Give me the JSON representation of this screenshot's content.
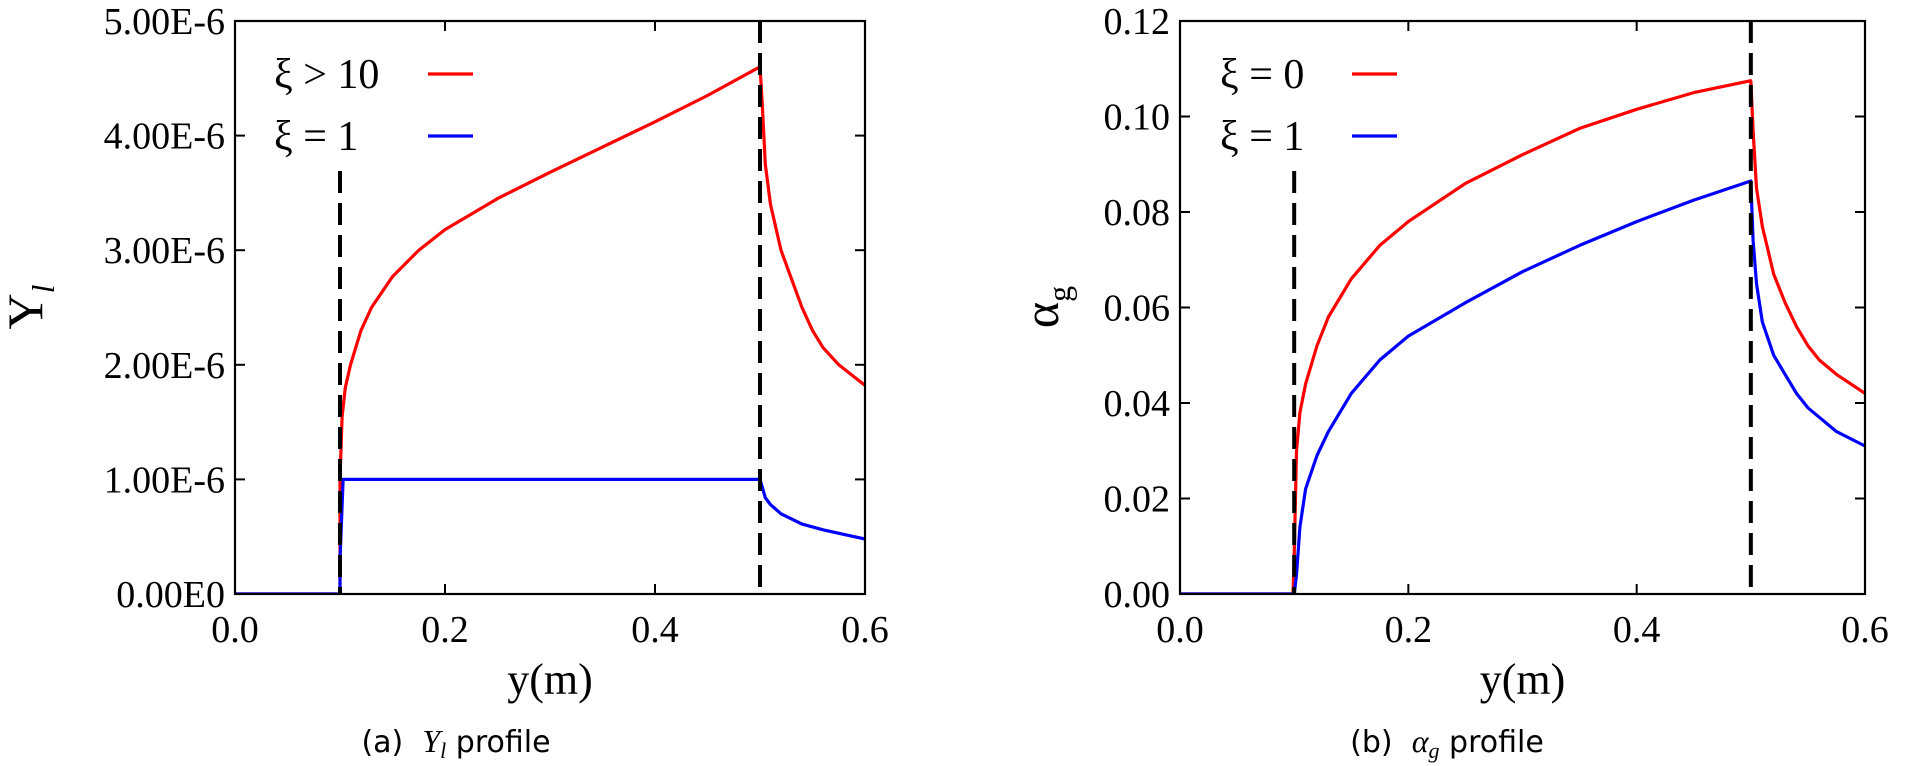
{
  "chart_data": [
    {
      "type": "line",
      "panel": "a",
      "caption_prefix": "(a)",
      "caption_symbol": "Y",
      "caption_symbol_sub": "l",
      "caption_suffix": "profile",
      "ylabel_main": "Y",
      "ylabel_sub": "l",
      "xlabel": "y(m)",
      "xlim": [
        0.0,
        0.6
      ],
      "ylim": [
        0,
        5e-06
      ],
      "xticks": [
        0.0,
        0.2,
        0.4,
        0.6
      ],
      "xtick_labels": [
        "0.0",
        "0.2",
        "0.4",
        "0.6"
      ],
      "yticks": [
        0,
        1e-06,
        2e-06,
        3e-06,
        4e-06,
        5e-06
      ],
      "ytick_labels": [
        "0.00E0",
        "1.00E-6",
        "2.00E-6",
        "3.00E-6",
        "4.00E-6",
        "5.00E-6"
      ],
      "grid": false,
      "legend_position": "top-left",
      "vlines": [
        0.1,
        0.5
      ],
      "series": [
        {
          "name": "ξ > 10",
          "color": "#ff0000",
          "x": [
            0.0,
            0.1,
            0.1,
            0.102,
            0.105,
            0.11,
            0.12,
            0.13,
            0.15,
            0.175,
            0.2,
            0.25,
            0.3,
            0.35,
            0.4,
            0.45,
            0.5,
            0.5,
            0.502,
            0.505,
            0.51,
            0.52,
            0.53,
            0.54,
            0.55,
            0.56,
            0.575,
            0.6
          ],
          "y": [
            0,
            0,
            1e-06,
            1.55e-06,
            1.8e-06,
            2e-06,
            2.3e-06,
            2.5e-06,
            2.77e-06,
            3e-06,
            3.18e-06,
            3.45e-06,
            3.68e-06,
            3.9e-06,
            4.12e-06,
            4.35e-06,
            4.6e-06,
            4.6e-06,
            4.3e-06,
            3.75e-06,
            3.4e-06,
            3e-06,
            2.75e-06,
            2.5e-06,
            2.3e-06,
            2.15e-06,
            2e-06,
            1.82e-06
          ]
        },
        {
          "name": "ξ = 1",
          "color": "#0000ff",
          "x": [
            0.0,
            0.1,
            0.1,
            0.103,
            0.15,
            0.2,
            0.3,
            0.4,
            0.5,
            0.5,
            0.505,
            0.51,
            0.52,
            0.54,
            0.56,
            0.58,
            0.6
          ],
          "y": [
            0,
            0,
            3e-07,
            1e-06,
            1e-06,
            1e-06,
            1e-06,
            1e-06,
            1e-06,
            1e-06,
            8.4e-07,
            7.8e-07,
            7e-07,
            6.1e-07,
            5.6e-07,
            5.2e-07,
            4.8e-07
          ]
        }
      ]
    },
    {
      "type": "line",
      "panel": "b",
      "caption_prefix": "(b)",
      "caption_symbol": "α",
      "caption_symbol_sub": "g",
      "caption_suffix": "profile",
      "ylabel_main": "α",
      "ylabel_sub": "g",
      "xlabel": "y(m)",
      "xlim": [
        0.0,
        0.6
      ],
      "ylim": [
        0,
        0.12
      ],
      "xticks": [
        0.0,
        0.2,
        0.4,
        0.6
      ],
      "xtick_labels": [
        "0.0",
        "0.2",
        "0.4",
        "0.6"
      ],
      "yticks": [
        0,
        0.02,
        0.04,
        0.06,
        0.08,
        0.1,
        0.12
      ],
      "ytick_labels": [
        "0.00",
        "0.02",
        "0.04",
        "0.06",
        "0.08",
        "0.10",
        "0.12"
      ],
      "grid": false,
      "legend_position": "top-left",
      "vlines": [
        0.1,
        0.5
      ],
      "series": [
        {
          "name": "ξ = 0",
          "color": "#ff0000",
          "x": [
            0.0,
            0.099,
            0.1,
            0.102,
            0.105,
            0.11,
            0.12,
            0.13,
            0.15,
            0.175,
            0.2,
            0.25,
            0.3,
            0.35,
            0.4,
            0.45,
            0.5,
            0.5,
            0.502,
            0.505,
            0.51,
            0.52,
            0.53,
            0.54,
            0.55,
            0.56,
            0.575,
            0.6
          ],
          "y": [
            0,
            0,
            0.008,
            0.03,
            0.038,
            0.044,
            0.052,
            0.058,
            0.066,
            0.073,
            0.078,
            0.086,
            0.092,
            0.0975,
            0.1015,
            0.105,
            0.1075,
            0.1075,
            0.097,
            0.085,
            0.077,
            0.067,
            0.061,
            0.056,
            0.052,
            0.049,
            0.046,
            0.042
          ]
        },
        {
          "name": "ξ = 1",
          "color": "#0000ff",
          "x": [
            0.0,
            0.1,
            0.102,
            0.105,
            0.11,
            0.12,
            0.13,
            0.15,
            0.175,
            0.2,
            0.25,
            0.3,
            0.35,
            0.4,
            0.45,
            0.5,
            0.5,
            0.502,
            0.505,
            0.51,
            0.52,
            0.53,
            0.54,
            0.55,
            0.56,
            0.575,
            0.6
          ],
          "y": [
            0,
            0,
            0.004,
            0.014,
            0.022,
            0.029,
            0.034,
            0.042,
            0.049,
            0.054,
            0.061,
            0.0675,
            0.073,
            0.078,
            0.0825,
            0.0865,
            0.0865,
            0.074,
            0.065,
            0.057,
            0.05,
            0.046,
            0.042,
            0.039,
            0.037,
            0.034,
            0.031
          ]
        }
      ]
    }
  ]
}
